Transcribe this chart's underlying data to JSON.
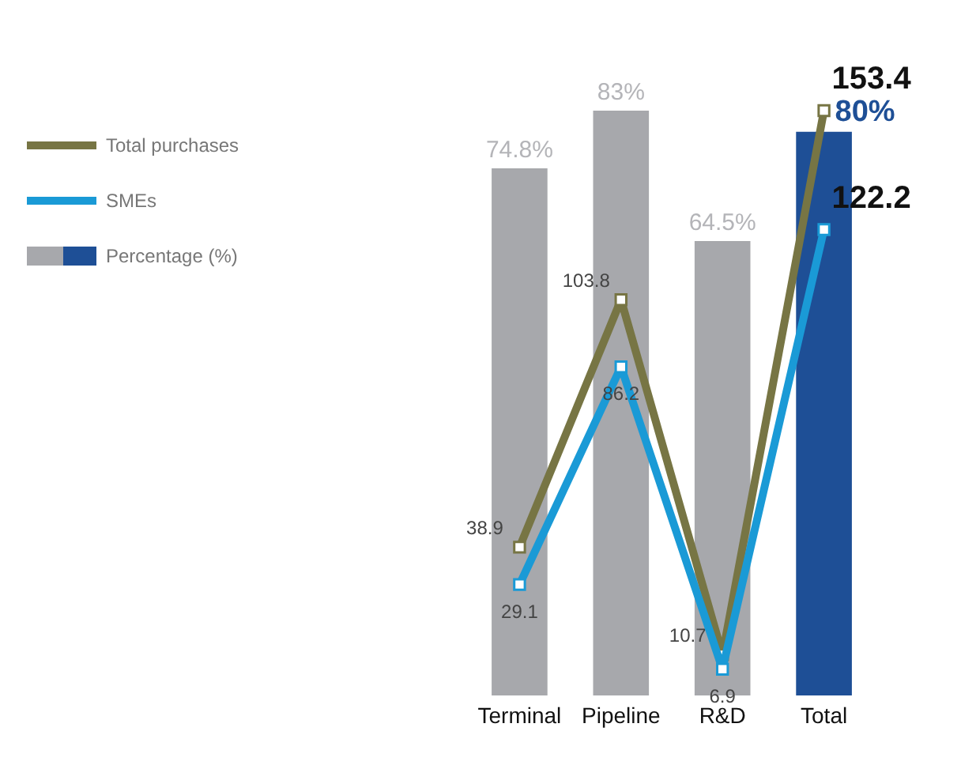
{
  "chart_data": {
    "type": "bar",
    "categories": [
      "Terminal",
      "Pipeline",
      "R&D",
      "Total"
    ],
    "series": [
      {
        "name": "Total purchases",
        "type": "line",
        "axis": "y2",
        "color": "#777544",
        "values": [
          38.9,
          103.8,
          10.7,
          153.4
        ]
      },
      {
        "name": "SMEs",
        "type": "line",
        "axis": "y2",
        "color": "#1a9ad6",
        "values": [
          29.1,
          86.2,
          6.9,
          122.2
        ]
      },
      {
        "name": "Percentage (%)",
        "color": "#a7a8ac",
        "colors": [
          "#a7a8ac",
          "#a7a8ac",
          "#a7a8ac",
          "#1e4f96"
        ],
        "values": [
          74.8,
          83,
          64.5,
          80
        ],
        "value_labels": [
          "74.8%",
          "83%",
          "64.5%",
          "80%"
        ]
      }
    ],
    "data_labels": true,
    "marker": "square",
    "line_style": "solid",
    "legend": "left",
    "tick_labels": "x"
  }
}
